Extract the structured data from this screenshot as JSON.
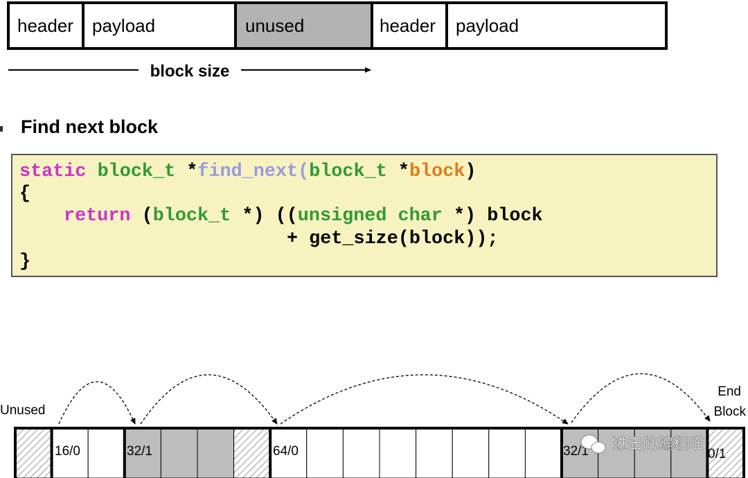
{
  "block_format": {
    "cells": [
      "header",
      "payload",
      "unused",
      "header",
      "payload"
    ],
    "size_label": "block size"
  },
  "section": {
    "title": "Find next block"
  },
  "code": {
    "lines": [
      [
        "static",
        "block_t",
        "*",
        "find_next",
        "(",
        "block_t",
        "*",
        "block",
        ")"
      ],
      [
        "{"
      ],
      [
        "return",
        "(",
        "block_t",
        "*)",
        "((",
        "unsigned char",
        "*) block"
      ],
      [
        "+ get_size(block));"
      ],
      [
        "}"
      ]
    ]
  },
  "heap": {
    "left_label": "Unused",
    "right_label": [
      "End",
      "Block"
    ],
    "block_labels": [
      "16/0",
      "32/1",
      "64/0",
      "32/1",
      "0/1"
    ]
  },
  "watermark": "进击的编程喵"
}
